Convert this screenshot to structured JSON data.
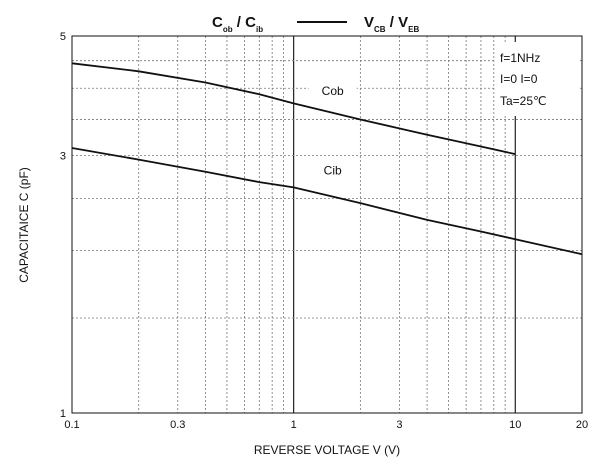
{
  "chart_data": {
    "type": "line",
    "title": {
      "left": {
        "main1": "C",
        "sub1": "ob",
        "sep": " / ",
        "main2": "C",
        "sub2": "ib"
      },
      "right": {
        "main1": "V",
        "sub1": "CB",
        "sep": " / ",
        "main2": "V",
        "sub2": "EB"
      }
    },
    "ylabel": "CAPACITAICE    C    (pF)",
    "xlabel": "REVERSE VOLTAGE    V    (V)",
    "x_scale": "log",
    "y_scale": "log",
    "xlim": [
      0.1,
      20
    ],
    "ylim": [
      1,
      5
    ],
    "x_ticks": [
      {
        "value": 0.1,
        "label": "0.1"
      },
      {
        "value": 0.3,
        "label": "0.3"
      },
      {
        "value": 1,
        "label": "1"
      },
      {
        "value": 3,
        "label": "3"
      },
      {
        "value": 10,
        "label": "10"
      },
      {
        "value": 20,
        "label": "20"
      }
    ],
    "y_ticks": [
      {
        "value": 1,
        "label": "1"
      },
      {
        "value": 3,
        "label": "3"
      },
      {
        "value": 5,
        "label": "5"
      }
    ],
    "grid": true,
    "conditions": [
      "f=1NHz",
      "I=0 I=0",
      "Ta=25℃"
    ],
    "series": [
      {
        "name": "Cob",
        "x": [
          0.1,
          0.2,
          0.4,
          0.7,
          1.0,
          2.0,
          4.0,
          7.0,
          10.0
        ],
        "y": [
          4.45,
          4.3,
          4.1,
          3.9,
          3.75,
          3.5,
          3.28,
          3.12,
          3.02
        ],
        "label_at": [
          1.5,
          3.9
        ]
      },
      {
        "name": "Cib",
        "x": [
          0.1,
          0.2,
          0.4,
          0.7,
          1.0,
          2.0,
          4.0,
          7.0,
          10.0,
          20.0
        ],
        "y": [
          3.1,
          2.95,
          2.8,
          2.68,
          2.62,
          2.45,
          2.28,
          2.17,
          2.1,
          1.97
        ],
        "label_at": [
          1.5,
          2.78
        ]
      }
    ]
  }
}
